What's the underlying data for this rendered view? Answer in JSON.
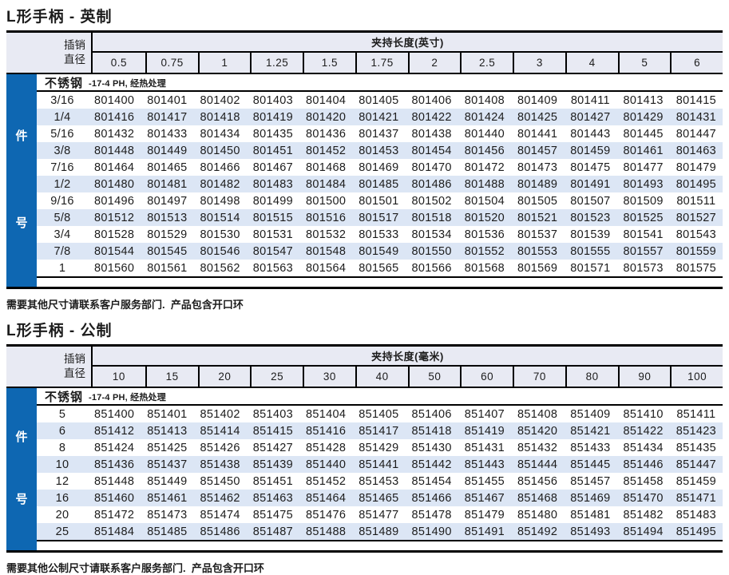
{
  "colors": {
    "sidebar_blue": "#0e67b2",
    "row_alt": "#dce6f5",
    "header_bg": "#e8eaf3",
    "border": "#000000",
    "text": "#1c1c1c"
  },
  "tables": [
    {
      "title": "L形手柄 - 英制",
      "pin_header_line1": "插销",
      "pin_header_line2": "直径",
      "span_header": "夹持长度(英寸)",
      "side": [
        "件",
        "号"
      ],
      "material": "不锈钢",
      "material_note": "-17-4 PH, 经热处理",
      "columns": [
        "0.5",
        "0.75",
        "1",
        "1.25",
        "1.5",
        "1.75",
        "2",
        "2.5",
        "3",
        "4",
        "5",
        "6"
      ],
      "rows": [
        {
          "dia": "3/16",
          "parts": [
            "801400",
            "801401",
            "801402",
            "801403",
            "801404",
            "801405",
            "801406",
            "801408",
            "801409",
            "801411",
            "801413",
            "801415"
          ]
        },
        {
          "dia": "1/4",
          "parts": [
            "801416",
            "801417",
            "801418",
            "801419",
            "801420",
            "801421",
            "801422",
            "801424",
            "801425",
            "801427",
            "801429",
            "801431"
          ]
        },
        {
          "dia": "5/16",
          "parts": [
            "801432",
            "801433",
            "801434",
            "801435",
            "801436",
            "801437",
            "801438",
            "801440",
            "801441",
            "801443",
            "801445",
            "801447"
          ]
        },
        {
          "dia": "3/8",
          "parts": [
            "801448",
            "801449",
            "801450",
            "801451",
            "801452",
            "801453",
            "801454",
            "801456",
            "801457",
            "801459",
            "801461",
            "801463"
          ]
        },
        {
          "dia": "7/16",
          "parts": [
            "801464",
            "801465",
            "801466",
            "801467",
            "801468",
            "801469",
            "801470",
            "801472",
            "801473",
            "801475",
            "801477",
            "801479"
          ]
        },
        {
          "dia": "1/2",
          "parts": [
            "801480",
            "801481",
            "801482",
            "801483",
            "801484",
            "801485",
            "801486",
            "801488",
            "801489",
            "801491",
            "801493",
            "801495"
          ]
        },
        {
          "dia": "9/16",
          "parts": [
            "801496",
            "801497",
            "801498",
            "801499",
            "801500",
            "801501",
            "801502",
            "801504",
            "801505",
            "801507",
            "801509",
            "801511"
          ]
        },
        {
          "dia": "5/8",
          "parts": [
            "801512",
            "801513",
            "801514",
            "801515",
            "801516",
            "801517",
            "801518",
            "801520",
            "801521",
            "801523",
            "801525",
            "801527"
          ]
        },
        {
          "dia": "3/4",
          "parts": [
            "801528",
            "801529",
            "801530",
            "801531",
            "801532",
            "801533",
            "801534",
            "801536",
            "801537",
            "801539",
            "801541",
            "801543"
          ]
        },
        {
          "dia": "7/8",
          "parts": [
            "801544",
            "801545",
            "801546",
            "801547",
            "801548",
            "801549",
            "801550",
            "801552",
            "801553",
            "801555",
            "801557",
            "801559"
          ]
        },
        {
          "dia": "1",
          "parts": [
            "801560",
            "801561",
            "801562",
            "801563",
            "801564",
            "801565",
            "801566",
            "801568",
            "801569",
            "801571",
            "801573",
            "801575"
          ]
        }
      ],
      "footer": "需要其他尺寸请联系客户服务部门.  产品包含开口环"
    },
    {
      "title": "L形手柄 - 公制",
      "pin_header_line1": "插销",
      "pin_header_line2": "直径",
      "span_header": "夹持长度(毫米)",
      "side": [
        "件",
        "号"
      ],
      "material": "不锈钢",
      "material_note": "-17-4 PH, 经热处理",
      "columns": [
        "10",
        "15",
        "20",
        "25",
        "30",
        "40",
        "50",
        "60",
        "70",
        "80",
        "90",
        "100"
      ],
      "rows": [
        {
          "dia": "5",
          "parts": [
            "851400",
            "851401",
            "851402",
            "851403",
            "851404",
            "851405",
            "851406",
            "851407",
            "851408",
            "851409",
            "851410",
            "851411"
          ]
        },
        {
          "dia": "6",
          "parts": [
            "851412",
            "851413",
            "851414",
            "851415",
            "851416",
            "851417",
            "851418",
            "851419",
            "851420",
            "851421",
            "851422",
            "851423"
          ]
        },
        {
          "dia": "8",
          "parts": [
            "851424",
            "851425",
            "851426",
            "851427",
            "851428",
            "851429",
            "851430",
            "851431",
            "851432",
            "851433",
            "851434",
            "851435"
          ]
        },
        {
          "dia": "10",
          "parts": [
            "851436",
            "851437",
            "851438",
            "851439",
            "851440",
            "851441",
            "851442",
            "851443",
            "851444",
            "851445",
            "851446",
            "851447"
          ]
        },
        {
          "dia": "12",
          "parts": [
            "851448",
            "851449",
            "851450",
            "851451",
            "851452",
            "851453",
            "851454",
            "851455",
            "851456",
            "851457",
            "851458",
            "851459"
          ]
        },
        {
          "dia": "16",
          "parts": [
            "851460",
            "851461",
            "851462",
            "851463",
            "851464",
            "851465",
            "851466",
            "851467",
            "851468",
            "851469",
            "851470",
            "851471"
          ]
        },
        {
          "dia": "20",
          "parts": [
            "851472",
            "851473",
            "851474",
            "851475",
            "851476",
            "851477",
            "851478",
            "851479",
            "851480",
            "851481",
            "851482",
            "851483"
          ]
        },
        {
          "dia": "25",
          "parts": [
            "851484",
            "851485",
            "851486",
            "851487",
            "851488",
            "851489",
            "851490",
            "851491",
            "851492",
            "851493",
            "851494",
            "851495"
          ]
        }
      ],
      "footer": "需要其他公制尺寸请联系客户服务部门.  产品包含开口环"
    }
  ]
}
